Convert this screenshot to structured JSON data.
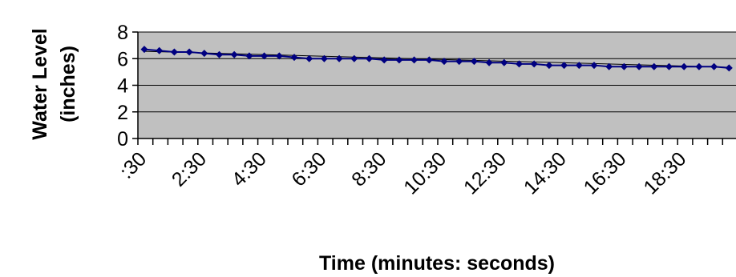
{
  "chart_data": {
    "type": "line",
    "title": "",
    "xlabel": "Time (minutes: seconds)",
    "ylabel_line1": "Water Level",
    "ylabel_line2": "(inches)",
    "ylim": [
      0,
      8
    ],
    "yticks": [
      0,
      2,
      4,
      6,
      8
    ],
    "xtick_labels": [
      ":30",
      "2:30",
      "4:30",
      "6:30",
      "8:30",
      "10:30",
      "12:30",
      "14:30",
      "16:30",
      "18:30"
    ],
    "grid": "horizontal",
    "legend": "none",
    "x": [
      ":30",
      "1:00",
      "1:30",
      "2:00",
      "2:30",
      "3:00",
      "3:30",
      "4:00",
      "4:30",
      "5:00",
      "5:30",
      "6:00",
      "6:30",
      "7:00",
      "7:30",
      "8:00",
      "8:30",
      "9:00",
      "9:30",
      "10:00",
      "10:30",
      "11:00",
      "11:30",
      "12:00",
      "12:30",
      "13:00",
      "13:30",
      "14:00",
      "14:30",
      "15:00",
      "15:30",
      "16:00",
      "16:30",
      "17:00",
      "17:30",
      "18:00",
      "18:30",
      "19:00",
      "19:30",
      "20:00"
    ],
    "series": [
      {
        "values": [
          6.7,
          6.6,
          6.5,
          6.5,
          6.4,
          6.3,
          6.3,
          6.2,
          6.2,
          6.2,
          6.1,
          6.0,
          6.0,
          6.0,
          6.0,
          6.0,
          5.9,
          5.9,
          5.9,
          5.9,
          5.8,
          5.8,
          5.8,
          5.7,
          5.7,
          5.6,
          5.6,
          5.5,
          5.5,
          5.5,
          5.5,
          5.4,
          5.4,
          5.4,
          5.4,
          5.4,
          5.4,
          5.4,
          5.4,
          5.3
        ],
        "trendline": [
          6.55,
          5.35
        ]
      }
    ],
    "colors": {
      "plot_bg": "#c0c0c0",
      "series": "#000080",
      "grid": "#000000"
    }
  }
}
